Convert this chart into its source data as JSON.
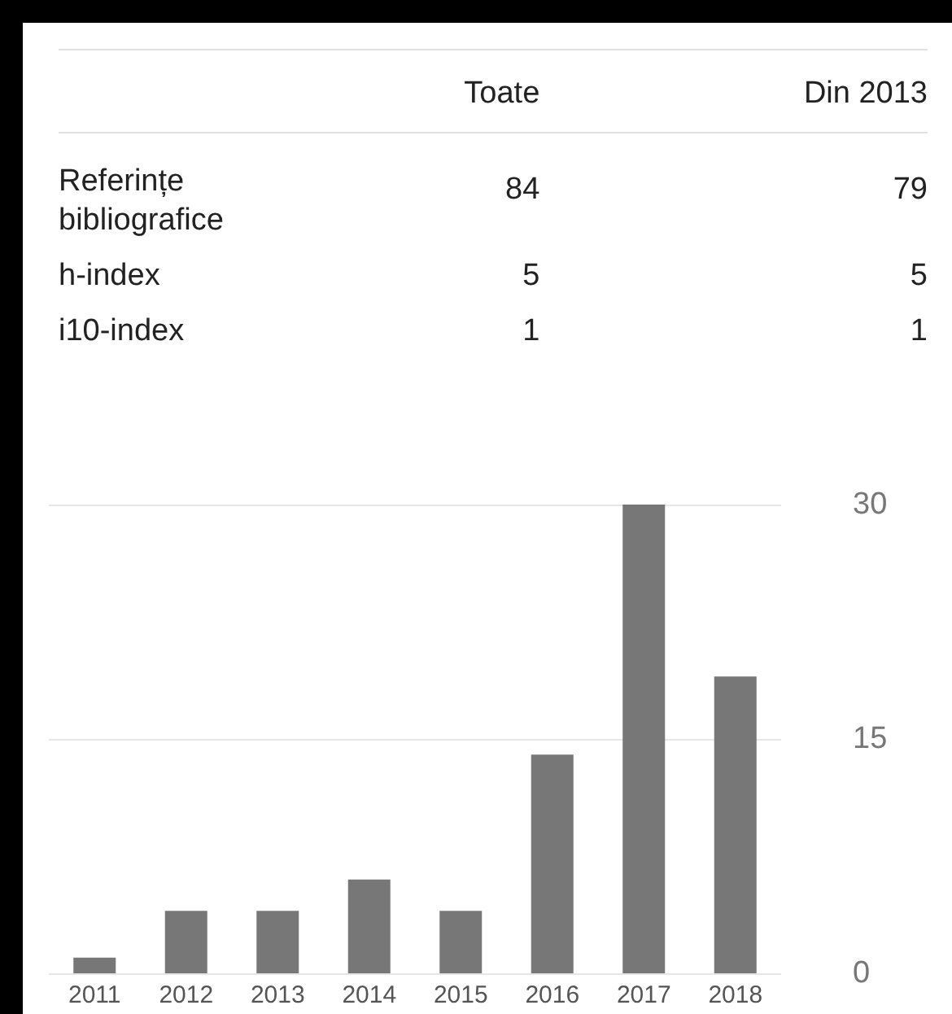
{
  "chart_data": {
    "type": "bar",
    "categories": [
      "2011",
      "2012",
      "2013",
      "2014",
      "2015",
      "2016",
      "2017",
      "2018"
    ],
    "values": [
      1,
      4,
      4,
      6,
      4,
      14,
      30,
      19
    ],
    "color": "#777777",
    "ylim": [
      0,
      30
    ],
    "yticks": [
      0,
      15,
      30
    ],
    "grid": "y",
    "annotations": [
      "Toate",
      "Din 2013",
      "Referințe bibliografice",
      "84",
      "79",
      "h-index",
      "5",
      "5",
      "i10-index",
      "1",
      "1"
    ]
  }
}
